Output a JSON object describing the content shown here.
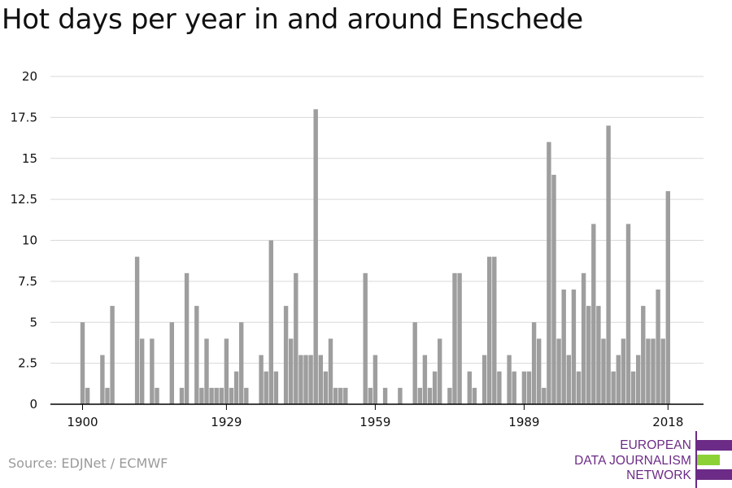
{
  "title": "Hot days per year in and around Enschede",
  "source": "Source: EDJNet / ECMWF",
  "logo": {
    "line1": "EUROPEAN",
    "line2": "DATA JOURNALISM",
    "line3": "NETWORK",
    "purple": "#6c2b86",
    "green": "#8cd136"
  },
  "colors": {
    "bar": "#9e9e9e",
    "grid": "#d9d9d9",
    "axis": "#000000",
    "text": "#111111"
  },
  "chart_data": {
    "type": "bar",
    "title": "Hot days per year in and around Enschede",
    "xlabel": "",
    "ylabel": "",
    "ylim": [
      0,
      20
    ],
    "grid": true,
    "yticks": [
      0,
      2.5,
      5,
      7.5,
      10,
      12.5,
      15,
      17.5,
      20
    ],
    "ytick_labels": [
      "0",
      "2.5",
      "5",
      "7.5",
      "10",
      "12.5",
      "15",
      "17.5",
      "20"
    ],
    "xticks": [
      1900,
      1929,
      1959,
      1989,
      2018
    ],
    "xtick_labels": [
      "1900",
      "1929",
      "1959",
      "1989",
      "2018"
    ],
    "x": [
      1900,
      1901,
      1902,
      1903,
      1904,
      1905,
      1906,
      1907,
      1908,
      1909,
      1910,
      1911,
      1912,
      1913,
      1914,
      1915,
      1916,
      1917,
      1918,
      1919,
      1920,
      1921,
      1922,
      1923,
      1924,
      1925,
      1926,
      1927,
      1928,
      1929,
      1930,
      1931,
      1932,
      1933,
      1934,
      1935,
      1936,
      1937,
      1938,
      1939,
      1940,
      1941,
      1942,
      1943,
      1944,
      1945,
      1946,
      1947,
      1948,
      1949,
      1950,
      1951,
      1952,
      1953,
      1954,
      1955,
      1956,
      1957,
      1958,
      1959,
      1960,
      1961,
      1962,
      1963,
      1964,
      1965,
      1966,
      1967,
      1968,
      1969,
      1970,
      1971,
      1972,
      1973,
      1974,
      1975,
      1976,
      1977,
      1978,
      1979,
      1980,
      1981,
      1982,
      1983,
      1984,
      1985,
      1986,
      1987,
      1988,
      1989,
      1990,
      1991,
      1992,
      1993,
      1994,
      1995,
      1996,
      1997,
      1998,
      1999,
      2000,
      2001,
      2002,
      2003,
      2004,
      2005,
      2006,
      2007,
      2008,
      2009,
      2010,
      2011,
      2012,
      2013,
      2014,
      2015,
      2016,
      2017,
      2018
    ],
    "values": [
      5,
      1,
      0,
      0,
      3,
      1,
      6,
      0,
      0,
      0,
      0,
      9,
      4,
      0,
      4,
      1,
      0,
      0,
      5,
      0,
      1,
      8,
      0,
      6,
      1,
      4,
      1,
      1,
      1,
      4,
      1,
      2,
      5,
      1,
      0,
      0,
      3,
      2,
      10,
      2,
      0,
      6,
      4,
      8,
      3,
      3,
      3,
      18,
      3,
      2,
      4,
      1,
      1,
      1,
      0,
      0,
      0,
      8,
      1,
      3,
      0,
      1,
      0,
      0,
      1,
      0,
      0,
      5,
      1,
      3,
      1,
      2,
      4,
      0,
      1,
      8,
      8,
      0,
      2,
      1,
      0,
      3,
      9,
      9,
      2,
      0,
      3,
      2,
      0,
      2,
      2,
      5,
      4,
      1,
      16,
      14,
      4,
      7,
      3,
      7,
      2,
      8,
      6,
      11,
      6,
      4,
      17,
      2,
      3,
      4,
      11,
      2,
      3,
      6,
      4,
      4,
      7,
      4,
      13
    ]
  }
}
